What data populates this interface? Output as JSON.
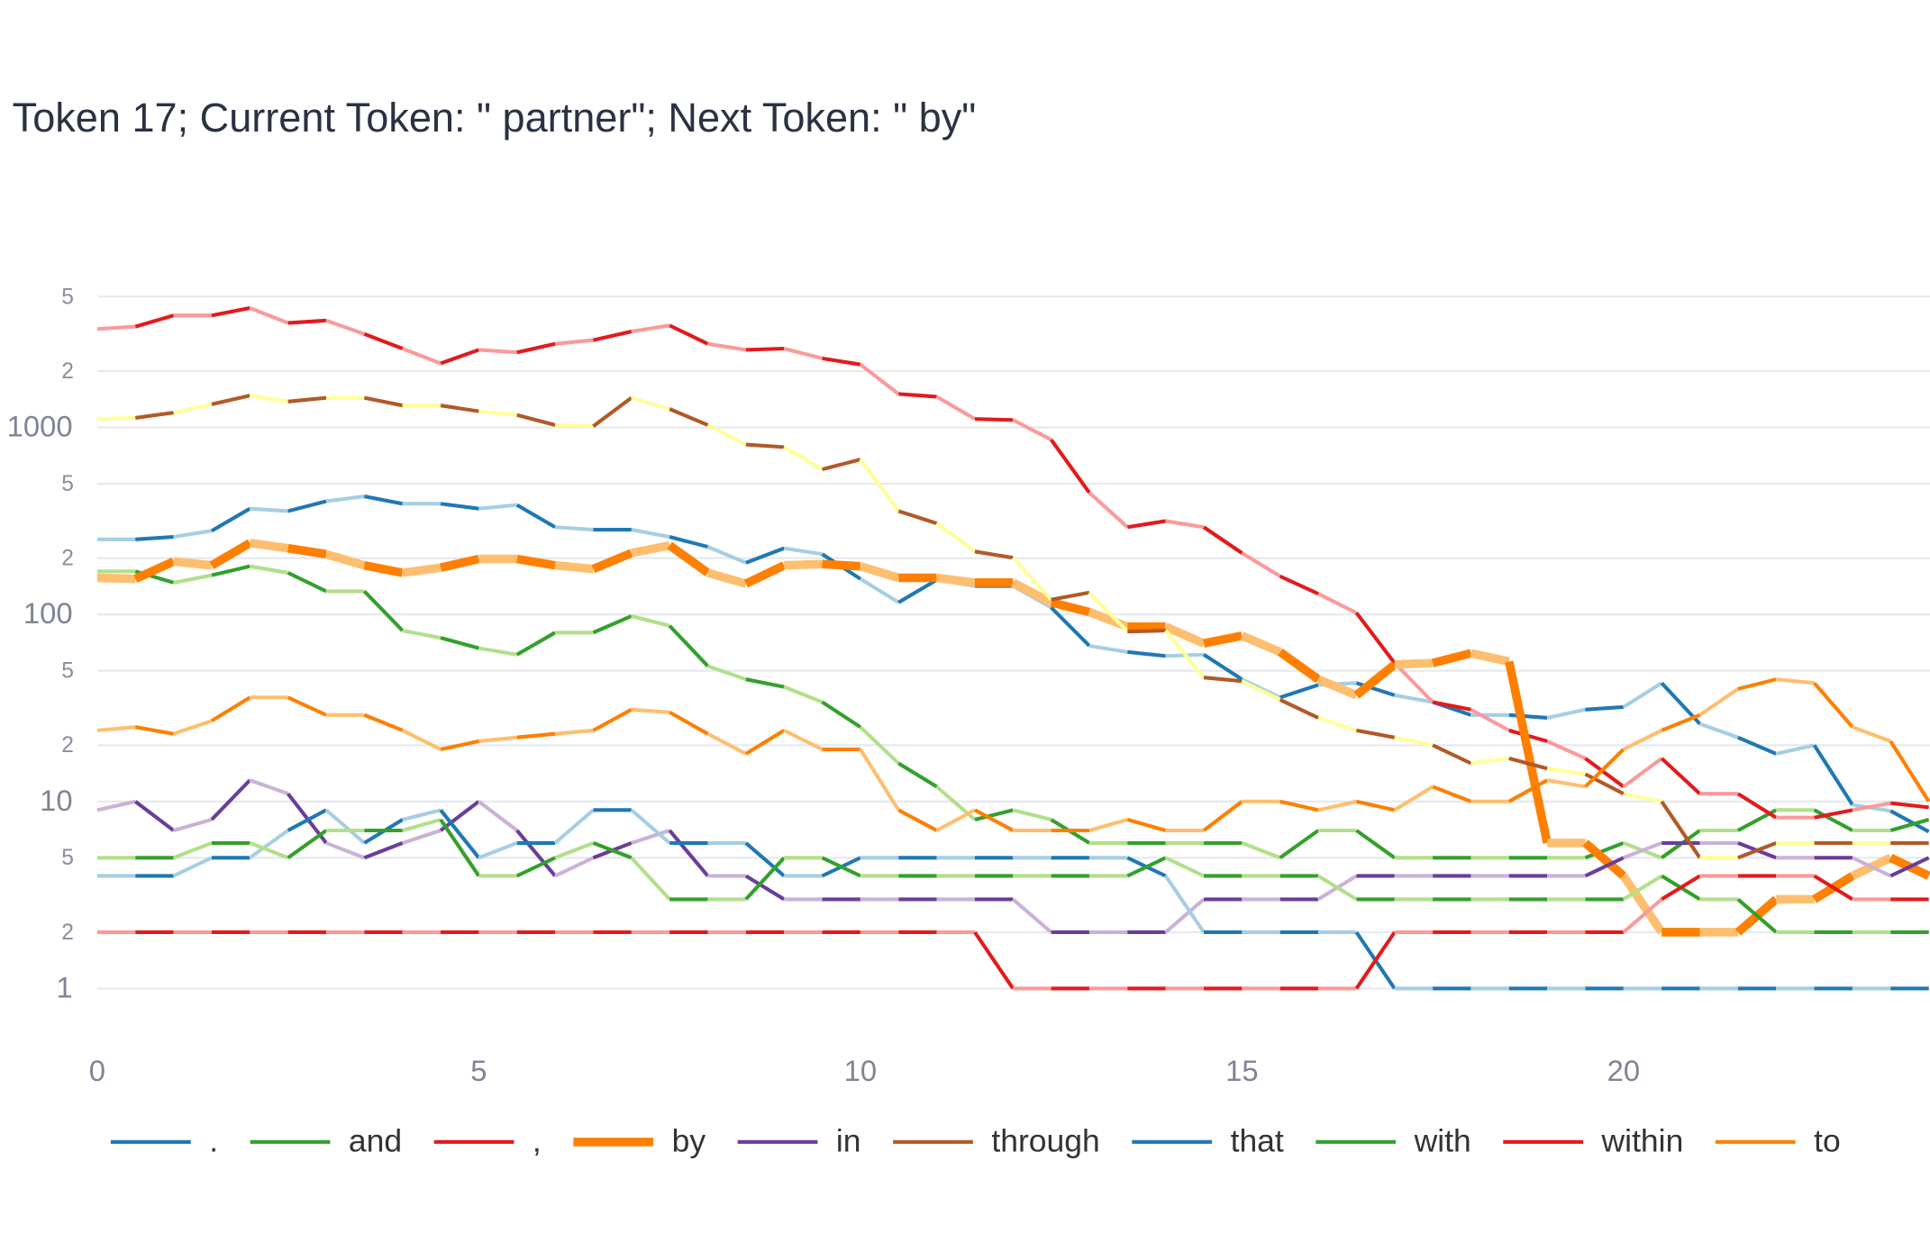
{
  "chart_data": {
    "type": "line",
    "title": "Token 17; Current Token: \" partner\"; Next Token: \" by\"",
    "x": [
      0,
      0.5,
      1,
      1.5,
      2,
      2.5,
      3,
      3.5,
      4,
      4.5,
      5,
      5.5,
      6,
      6.5,
      7,
      7.5,
      8,
      8.5,
      9,
      9.5,
      10,
      10.5,
      11,
      11.5,
      12,
      12.5,
      13,
      13.5,
      14,
      14.5,
      15,
      15.5,
      16,
      16.5,
      17,
      17.5,
      18,
      18.5,
      19,
      19.5,
      20,
      20.5,
      21,
      21.5,
      22,
      22.5,
      23,
      23.5,
      24
    ],
    "xlim": [
      0,
      24
    ],
    "xticks": [
      0,
      5,
      10,
      15,
      20
    ],
    "ylim": [
      0.6,
      6000
    ],
    "log_y": true,
    "grid": true,
    "yticks": [
      1,
      2,
      5,
      10,
      {
        "value": 20,
        "label": "2"
      },
      {
        "value": 50,
        "label": "5"
      },
      100,
      {
        "value": 200,
        "label": "2"
      },
      {
        "value": 500,
        "label": "5"
      },
      1000,
      {
        "value": 2000,
        "label": "2"
      },
      {
        "value": 5000,
        "label": "5"
      }
    ],
    "legend": "bottom",
    "series": [
      {
        "name": ".",
        "colors": [
          "#1f78b4",
          "#a6cee3"
        ],
        "width": 3,
        "values": [
          252,
          252,
          260,
          280,
          368,
          357,
          403,
          428,
          391,
          391,
          368,
          385,
          293,
          284,
          284,
          260,
          230,
          189,
          226,
          210,
          155,
          116,
          153,
          142,
          142,
          109,
          68,
          63,
          60,
          61,
          45,
          36,
          42,
          43,
          37,
          34,
          29,
          29,
          28,
          31,
          32,
          43,
          26,
          22,
          18,
          20,
          9.6,
          8.9,
          6.9
        ]
      },
      {
        "name": "and",
        "colors": [
          "#33a02c",
          "#b2df8a"
        ],
        "width": 3,
        "values": [
          170,
          170,
          148,
          162,
          181,
          167,
          133,
          133,
          82,
          75,
          66,
          61,
          80,
          80,
          98,
          87,
          53,
          45,
          41,
          34,
          25,
          16,
          12,
          8,
          9,
          8,
          6,
          6,
          6,
          6,
          6,
          5,
          7,
          7,
          5,
          5,
          5,
          5,
          5,
          5,
          6,
          5,
          7,
          7,
          9,
          9,
          7,
          7,
          8
        ]
      },
      {
        "name": ",",
        "colors": [
          "#e31a1c",
          "#fb9a99"
        ],
        "width": 3,
        "values": [
          3360,
          3460,
          3970,
          3970,
          4350,
          3620,
          3730,
          3160,
          2640,
          2200,
          2600,
          2520,
          2800,
          2930,
          3260,
          3510,
          2800,
          2600,
          2640,
          2340,
          2170,
          1510,
          1460,
          1110,
          1095,
          860,
          448,
          293,
          316,
          293,
          213,
          160,
          129,
          102,
          55,
          34,
          31,
          24,
          21,
          17,
          12,
          17,
          11,
          11,
          8.2,
          8.2,
          9,
          9.8,
          9.3
        ]
      },
      {
        "name": "by",
        "colors": [
          "#ff7f00",
          "#fdbf6f"
        ],
        "width": 7,
        "values": [
          157,
          155,
          192,
          183,
          241,
          226,
          210,
          183,
          167,
          178,
          198,
          198,
          183,
          175,
          213,
          234,
          167,
          146,
          183,
          186,
          181,
          157,
          157,
          148,
          148,
          116,
          103,
          86,
          86,
          70,
          77,
          63,
          45,
          37,
          54,
          55,
          62,
          56,
          6,
          6,
          4,
          2,
          2,
          2,
          3,
          3,
          4,
          5,
          4
        ]
      },
      {
        "name": "in",
        "colors": [
          "#6a3d9a",
          "#cab2d6"
        ],
        "width": 3,
        "values": [
          9,
          10,
          7,
          8,
          13,
          11,
          6,
          5,
          6,
          7,
          10,
          7,
          4,
          5,
          6,
          7,
          4,
          4,
          3,
          3,
          3,
          3,
          3,
          3,
          3,
          2,
          2,
          2,
          2,
          3,
          3,
          3,
          3,
          4,
          4,
          4,
          4,
          4,
          4,
          4,
          5,
          6,
          6,
          6,
          5,
          5,
          5,
          4,
          5
        ]
      },
      {
        "name": "through",
        "colors": [
          "#b15928",
          "#ffff99"
        ],
        "width": 3,
        "values": [
          1110,
          1125,
          1200,
          1330,
          1480,
          1375,
          1440,
          1440,
          1310,
          1310,
          1220,
          1165,
          1030,
          1015,
          1440,
          1255,
          1030,
          810,
          785,
          597,
          674,
          357,
          307,
          217,
          201,
          120,
          131,
          81,
          82,
          46,
          44,
          35,
          28,
          24,
          22,
          20,
          16,
          17,
          15,
          14,
          11,
          10,
          5,
          5,
          6,
          6,
          6,
          6,
          6
        ]
      },
      {
        "name": "that",
        "colors": [
          "#1f78b4",
          "#a6cee3"
        ],
        "width": 3,
        "values": [
          4,
          4,
          4,
          5,
          5,
          7,
          9,
          6,
          8,
          9,
          5,
          6,
          6,
          9,
          9,
          6,
          6,
          6,
          4,
          4,
          5,
          5,
          5,
          5,
          5,
          5,
          5,
          5,
          4,
          2,
          2,
          2,
          2,
          2,
          1,
          1,
          1,
          1,
          1,
          1,
          1,
          1,
          1,
          1,
          1,
          1,
          1,
          1,
          1
        ]
      },
      {
        "name": "with",
        "colors": [
          "#33a02c",
          "#b2df8a"
        ],
        "width": 3,
        "values": [
          5,
          5,
          5,
          6,
          6,
          5,
          7,
          7,
          7,
          8,
          4,
          4,
          5,
          6,
          5,
          3,
          3,
          3,
          5,
          5,
          4,
          4,
          4,
          4,
          4,
          4,
          4,
          4,
          5,
          4,
          4,
          4,
          4,
          3,
          3,
          3,
          3,
          3,
          3,
          3,
          3,
          4,
          3,
          3,
          2,
          2,
          2,
          2,
          2
        ]
      },
      {
        "name": "within",
        "colors": [
          "#e31a1c",
          "#fb9a99"
        ],
        "width": 3,
        "values": [
          2,
          2,
          2,
          2,
          2,
          2,
          2,
          2,
          2,
          2,
          2,
          2,
          2,
          2,
          2,
          2,
          2,
          2,
          2,
          2,
          2,
          2,
          2,
          2,
          1,
          1,
          1,
          1,
          1,
          1,
          1,
          1,
          1,
          1,
          2,
          2,
          2,
          2,
          2,
          2,
          2,
          3,
          4,
          4,
          4,
          4,
          3,
          3,
          3
        ]
      },
      {
        "name": "to",
        "colors": [
          "#ff7f00",
          "#fdbf6f"
        ],
        "width": 3,
        "values": [
          24,
          25,
          23,
          27,
          36,
          36,
          29,
          29,
          24,
          19,
          21,
          22,
          23,
          24,
          31,
          30,
          23,
          18,
          24,
          19,
          19,
          9,
          7,
          9,
          7,
          7,
          7,
          8,
          7,
          7,
          10,
          10,
          9,
          10,
          9,
          12,
          10,
          10,
          13,
          12,
          19,
          24,
          29,
          40,
          45,
          43,
          25,
          21,
          10
        ]
      }
    ]
  }
}
